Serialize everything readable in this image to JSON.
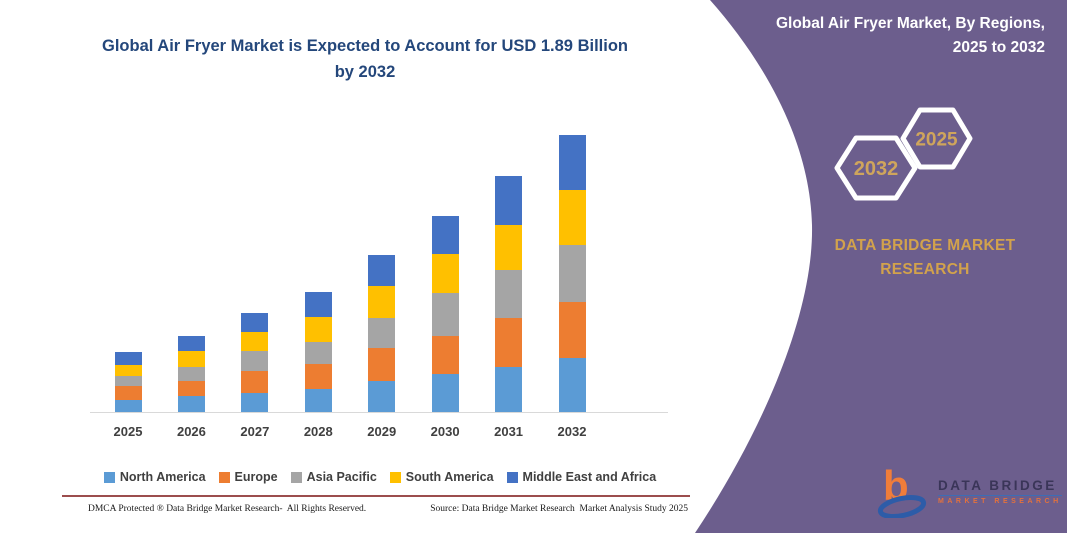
{
  "chart": {
    "title": "Global Air Fryer Market is Expected to Account for USD 1.89 Billion by 2032"
  },
  "chart_data": {
    "type": "bar",
    "stacked": true,
    "unit": "USD Billion",
    "categories": [
      "2025",
      "2026",
      "2027",
      "2028",
      "2029",
      "2030",
      "2031",
      "2032"
    ],
    "series": [
      {
        "name": "North America",
        "color": "#5B9BD5",
        "values": [
          0.08,
          0.11,
          0.13,
          0.16,
          0.21,
          0.26,
          0.31,
          0.37
        ]
      },
      {
        "name": "Europe",
        "color": "#ED7D31",
        "values": [
          0.1,
          0.1,
          0.15,
          0.17,
          0.23,
          0.26,
          0.33,
          0.38
        ]
      },
      {
        "name": "Asia Pacific",
        "color": "#A5A5A5",
        "values": [
          0.07,
          0.1,
          0.14,
          0.15,
          0.2,
          0.29,
          0.33,
          0.39
        ]
      },
      {
        "name": "South America",
        "color": "#FFC000",
        "values": [
          0.07,
          0.11,
          0.13,
          0.17,
          0.22,
          0.27,
          0.31,
          0.38
        ]
      },
      {
        "name": "Middle East and Africa",
        "color": "#4472C4",
        "values": [
          0.09,
          0.1,
          0.13,
          0.17,
          0.21,
          0.26,
          0.33,
          0.37
        ]
      }
    ],
    "totals_by_year": [
      0.41,
      0.52,
      0.68,
      0.82,
      1.07,
      1.34,
      1.61,
      1.89
    ],
    "ylim": [
      0,
      2.0
    ],
    "grid": false,
    "legend_position": "bottom"
  },
  "footer": {
    "dmca": "DMCA Protected ® Data Bridge Market Research-  All Rights Reserved.",
    "source": "Source: Data Bridge Market Research  Market Analysis Study 2025"
  },
  "panel": {
    "title": "Global Air Fryer Market, By Regions, 2025 to 2032",
    "hexagon_back_year": "2032",
    "hexagon_front_year": "2025",
    "brand_heading": "DATA BRIDGE MARKET RESEARCH",
    "logo_letter": "b",
    "logo_title": "DATA BRIDGE",
    "logo_subtitle": "MARKET RESEARCH"
  },
  "colors": {
    "panel_purple": "#6c5e8d",
    "title_navy": "#24477b",
    "gold": "#d2a24c",
    "axis_line": "#d9d9d9",
    "footer_rule_maroon": "#8b2e2e",
    "hexagon_border": "#ffffff"
  }
}
